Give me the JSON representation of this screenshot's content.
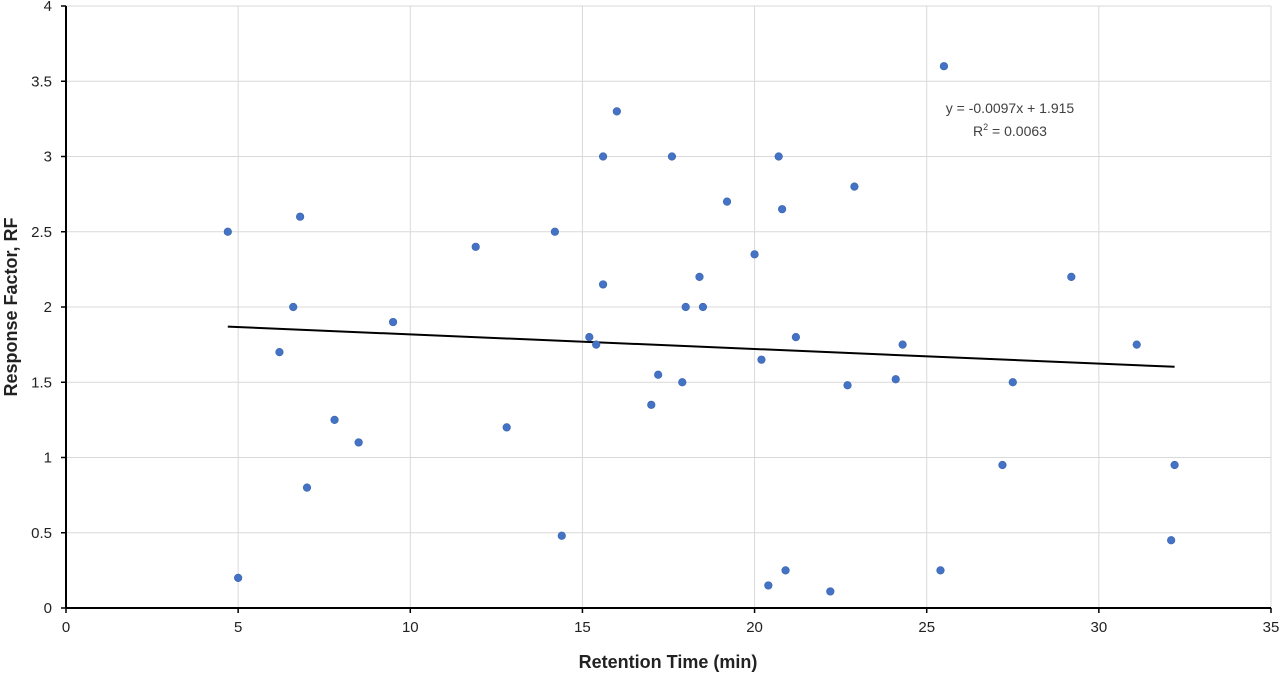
{
  "chart_data": {
    "type": "scatter",
    "title": "",
    "xlabel": "Retention Time (min)",
    "ylabel": "Response Factor, RF",
    "xlim": [
      0,
      35
    ],
    "ylim": [
      0,
      4
    ],
    "x_ticks": [
      0,
      5,
      10,
      15,
      20,
      25,
      30,
      35
    ],
    "y_ticks": [
      0,
      0.5,
      1,
      1.5,
      2,
      2.5,
      3,
      3.5,
      4
    ],
    "x_tick_labels": [
      "0",
      "5",
      "10",
      "15",
      "20",
      "25",
      "30",
      "35"
    ],
    "y_tick_labels": [
      "0",
      "0.5",
      "1",
      "1.5",
      "2",
      "2.5",
      "3",
      "3.5",
      "4"
    ],
    "grid": true,
    "legend": "none",
    "series": [
      {
        "color": "#4472C4",
        "points": [
          [
            4.7,
            2.5
          ],
          [
            5.0,
            0.2
          ],
          [
            6.2,
            1.7
          ],
          [
            6.6,
            2.0
          ],
          [
            6.8,
            2.6
          ],
          [
            7.0,
            0.8
          ],
          [
            7.8,
            1.25
          ],
          [
            8.5,
            1.1
          ],
          [
            9.5,
            1.9
          ],
          [
            11.9,
            2.4
          ],
          [
            12.8,
            1.2
          ],
          [
            14.2,
            2.5
          ],
          [
            14.4,
            0.48
          ],
          [
            15.2,
            1.8
          ],
          [
            15.4,
            1.75
          ],
          [
            15.6,
            2.15
          ],
          [
            15.6,
            3.0
          ],
          [
            16.0,
            3.3
          ],
          [
            17.0,
            1.35
          ],
          [
            17.2,
            1.55
          ],
          [
            17.6,
            3.0
          ],
          [
            17.9,
            1.5
          ],
          [
            18.0,
            2.0
          ],
          [
            18.4,
            2.2
          ],
          [
            18.5,
            2.0
          ],
          [
            19.2,
            2.7
          ],
          [
            20.0,
            2.35
          ],
          [
            20.2,
            1.65
          ],
          [
            20.4,
            0.15
          ],
          [
            20.7,
            3.0
          ],
          [
            20.8,
            2.65
          ],
          [
            20.9,
            0.25
          ],
          [
            21.2,
            1.8
          ],
          [
            22.2,
            0.11
          ],
          [
            22.7,
            1.48
          ],
          [
            22.9,
            2.8
          ],
          [
            24.1,
            1.52
          ],
          [
            24.3,
            1.75
          ],
          [
            25.4,
            0.25
          ],
          [
            25.5,
            3.6
          ],
          [
            27.2,
            0.95
          ],
          [
            27.5,
            1.5
          ],
          [
            29.2,
            2.2
          ],
          [
            31.1,
            1.75
          ],
          [
            32.1,
            0.45
          ],
          [
            32.2,
            0.95
          ]
        ]
      }
    ],
    "trendline": {
      "slope": -0.0097,
      "intercept": 1.915,
      "x_range": [
        4.7,
        32.2
      ],
      "color": "#000000",
      "equation_label": "y = -0.0097x + 1.915",
      "r2_label_prefix": "R",
      "r2_label_sup": "2",
      "r2_label_suffix": " = 0.0063"
    }
  }
}
